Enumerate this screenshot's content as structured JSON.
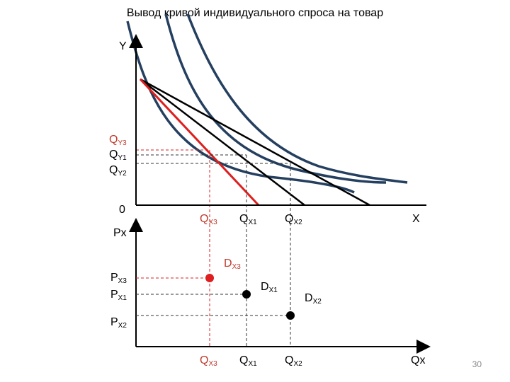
{
  "title": "Вывод кривой индивидуального спроса на товар",
  "colors": {
    "curve": "#243f5f",
    "budget": "#000000",
    "budget_new": "#dd1f1f",
    "axis": "#000000",
    "guide_red": "#dd1f1f",
    "guide_black": "#333333"
  },
  "upper": {
    "y_axis_label": "Y",
    "x_axis_label": "X",
    "origin_label": "0",
    "qy": [
      {
        "base": "Q",
        "sub": "Y3"
      },
      {
        "base": "Q",
        "sub": "Y1"
      },
      {
        "base": "Q",
        "sub": "Y2"
      }
    ],
    "qx": [
      {
        "base": "Q",
        "sub": "X3"
      },
      {
        "base": "Q",
        "sub": "X1"
      },
      {
        "base": "Q",
        "sub": "X2"
      }
    ]
  },
  "lower": {
    "y_axis_label": "Px",
    "x_axis_label": "Qx",
    "px": [
      {
        "base": "P",
        "sub": "X3"
      },
      {
        "base": "P",
        "sub": "X1"
      },
      {
        "base": "P",
        "sub": "X2"
      }
    ],
    "qx": [
      {
        "base": "Q",
        "sub": "X3"
      },
      {
        "base": "Q",
        "sub": "X1"
      },
      {
        "base": "Q",
        "sub": "X2"
      }
    ],
    "demand_points": [
      {
        "base": "D",
        "sub": "X3"
      },
      {
        "base": "D",
        "sub": "X1"
      },
      {
        "base": "D",
        "sub": "X2"
      }
    ]
  },
  "page_number": "30"
}
